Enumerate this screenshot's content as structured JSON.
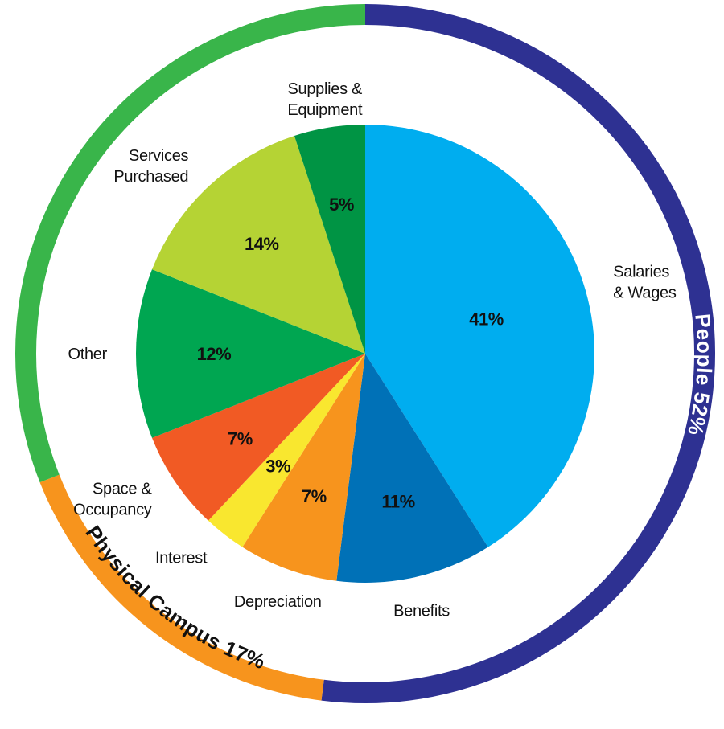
{
  "chart_data": {
    "type": "pie",
    "title": "",
    "unit": "%",
    "slices": [
      {
        "label_lines": [
          "Salaries",
          "& Wages"
        ],
        "value": 41,
        "value_label": "41%",
        "color": "#00adef"
      },
      {
        "label_lines": [
          "Benefits"
        ],
        "value": 11,
        "value_label": "11%",
        "color": "#0071b7"
      },
      {
        "label_lines": [
          "Depreciation"
        ],
        "value": 7,
        "value_label": "7%",
        "color": "#f7941d"
      },
      {
        "label_lines": [
          "Interest"
        ],
        "value": 3,
        "value_label": "3%",
        "color": "#f9e72f"
      },
      {
        "label_lines": [
          "Space &",
          "Occupancy"
        ],
        "value": 7,
        "value_label": "7%",
        "color": "#f15a24"
      },
      {
        "label_lines": [
          "Other"
        ],
        "value": 12,
        "value_label": "12%",
        "color": "#00a651"
      },
      {
        "label_lines": [
          "Services",
          "Purchased"
        ],
        "value": 14,
        "value_label": "14%",
        "color": "#b5d334"
      },
      {
        "label_lines": [
          "Supplies &",
          "Equipment"
        ],
        "value": 5,
        "value_label": "5%",
        "color": "#009444"
      }
    ],
    "groups": [
      {
        "label": "People 52%",
        "value": 52,
        "color": "#2e3192",
        "text_color": "#ffffff"
      },
      {
        "label": "Physical Campus 17%",
        "value": 17,
        "color": "#f7941d",
        "text_color": "#111111"
      },
      {
        "label": "",
        "value": 31,
        "color": "#39b54a",
        "text_color": "#ffffff"
      }
    ],
    "legend": "none"
  }
}
